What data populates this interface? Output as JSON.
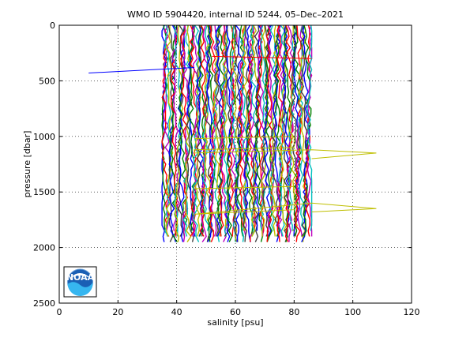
{
  "chart_data": {
    "type": "line",
    "title": "WMO ID 5904420, internal ID 5244, 05–Dec–2021",
    "xlabel": "salinity [psu]",
    "ylabel": "pressure [dbar]",
    "xlim": [
      0,
      120
    ],
    "ylim": [
      0,
      2500
    ],
    "y_reversed": true,
    "grid": true,
    "x_ticks": [
      0,
      20,
      40,
      60,
      80,
      100,
      120
    ],
    "y_ticks": [
      0,
      500,
      1000,
      1500,
      2000,
      2500
    ],
    "profile_band": {
      "x_min": 35,
      "x_max": 86,
      "pressure_top": 0,
      "pressure_bottom": 2000,
      "profile_count": 110,
      "colors": [
        "#0000ff",
        "#008000",
        "#ff0000",
        "#bf00bf",
        "#00bfbf",
        "#bfbf00",
        "#404040"
      ]
    },
    "outliers": [
      {
        "color": "#0000ff",
        "x": [
          10,
          46
        ],
        "y": [
          430,
          380
        ]
      },
      {
        "color": "#ff0000",
        "x": [
          52,
          86
        ],
        "y": [
          280,
          300
        ]
      },
      {
        "color": "#bfbf00",
        "x": [
          46,
          80,
          80,
          46,
          46,
          86,
          108,
          86
        ],
        "y": [
          1020,
          1000,
          1100,
          1120,
          1150,
          1120,
          1150,
          1200
        ]
      },
      {
        "color": "#bfbf00",
        "x": [
          46,
          80,
          80,
          46,
          86,
          108,
          86
        ],
        "y": [
          1470,
          1450,
          1660,
          1700,
          1600,
          1650,
          1680
        ]
      }
    ]
  },
  "logo": {
    "text": "NOAA"
  }
}
